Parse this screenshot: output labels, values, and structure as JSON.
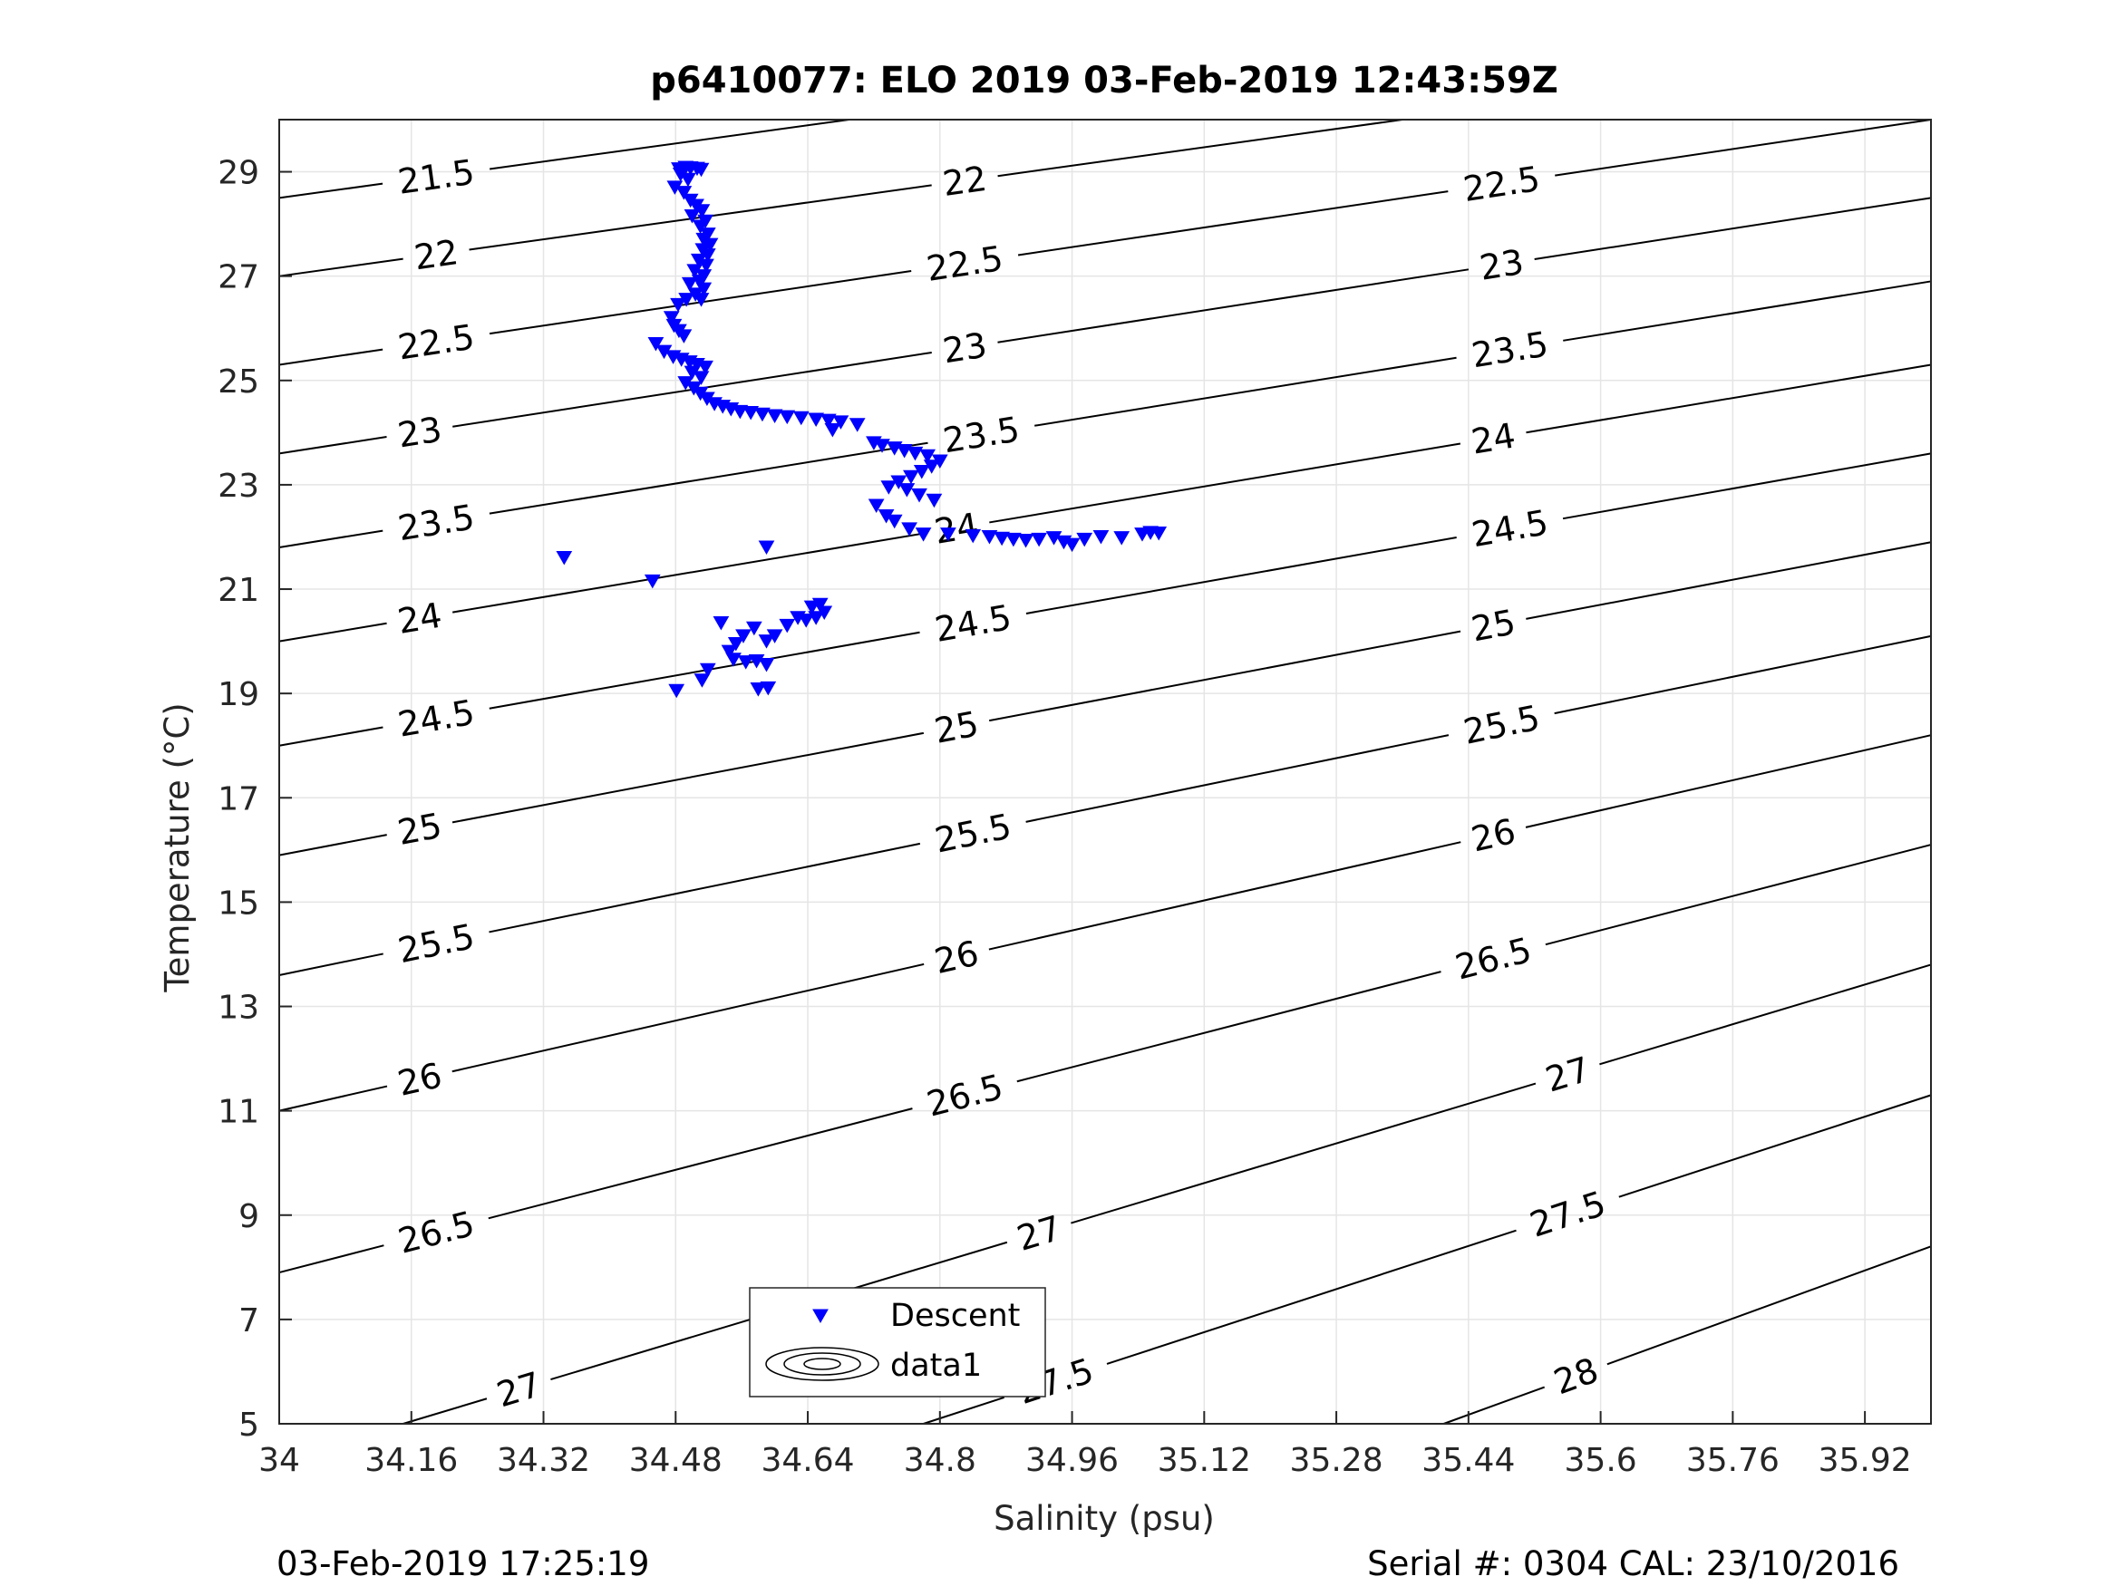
{
  "chart_data": {
    "type": "scatter",
    "title": "p6410077: ELO 2019 03-Feb-2019 12:43:59Z",
    "xlabel": "Salinity (psu)",
    "ylabel": "Temperature (°C)",
    "xlim": [
      34,
      36.0
    ],
    "ylim": [
      5,
      30
    ],
    "x_ticks": [
      34,
      34.16,
      34.32,
      34.48,
      34.64,
      34.8,
      34.96,
      35.12,
      35.28,
      35.44,
      35.6,
      35.76,
      35.92
    ],
    "x_tick_labels": [
      "34",
      "34.16",
      "34.32",
      "34.48",
      "34.64",
      "34.8",
      "34.96",
      "35.12",
      "35.28",
      "35.44",
      "35.6",
      "35.76",
      "35.92"
    ],
    "y_ticks": [
      5,
      7,
      9,
      11,
      13,
      15,
      17,
      19,
      21,
      23,
      25,
      27,
      29
    ],
    "y_tick_labels": [
      "5",
      "7",
      "9",
      "11",
      "13",
      "15",
      "17",
      "19",
      "21",
      "23",
      "25",
      "27",
      "29"
    ],
    "grid": true,
    "legend": {
      "position": "bottom-center",
      "entries": [
        "Descent",
        "data1"
      ]
    },
    "footer_left": "03-Feb-2019 17:25:19",
    "footer_right": "Serial #: 0304  CAL: 23/10/2016",
    "colors": {
      "descent": "#0000ff",
      "contour": "#000000",
      "grid": "#e5e5e5"
    },
    "density_contours": [
      {
        "level": "21.5",
        "points": [
          [
            34.0,
            28.5
          ],
          [
            34.69,
            30.0
          ]
        ],
        "labels": [
          [
            34.19,
            29.0
          ]
        ]
      },
      {
        "level": "22",
        "points": [
          [
            34.0,
            27.0
          ],
          [
            35.36,
            30.0
          ]
        ],
        "labels": [
          [
            34.19,
            27.7
          ],
          [
            34.83,
            29.0
          ]
        ]
      },
      {
        "level": "22.5",
        "points": [
          [
            34.0,
            25.3
          ],
          [
            36.0,
            30.0
          ]
        ],
        "labels": [
          [
            34.19,
            26.0
          ],
          [
            34.83,
            27.4
          ],
          [
            35.48,
            29.0
          ]
        ]
      },
      {
        "level": "23",
        "points": [
          [
            34.0,
            23.6
          ],
          [
            36.0,
            28.5
          ]
        ],
        "labels": [
          [
            34.17,
            24.1
          ],
          [
            34.83,
            25.7
          ],
          [
            35.48,
            27.2
          ]
        ]
      },
      {
        "level": "23.5",
        "points": [
          [
            34.0,
            21.8
          ],
          [
            36.0,
            26.9
          ]
        ],
        "labels": [
          [
            34.19,
            22.4
          ],
          [
            34.85,
            24.0
          ],
          [
            35.49,
            25.6
          ]
        ]
      },
      {
        "level": "24",
        "points": [
          [
            34.0,
            20.0
          ],
          [
            36.0,
            25.3
          ]
        ],
        "labels": [
          [
            34.17,
            20.7
          ],
          [
            34.82,
            22.3
          ],
          [
            35.47,
            23.9
          ]
        ]
      },
      {
        "level": "24.5",
        "points": [
          [
            34.0,
            18.0
          ],
          [
            36.0,
            23.6
          ]
        ],
        "labels": [
          [
            34.19,
            18.9
          ],
          [
            34.84,
            20.6
          ],
          [
            35.49,
            22.3
          ]
        ]
      },
      {
        "level": "25",
        "points": [
          [
            34.0,
            15.9
          ],
          [
            36.0,
            21.9
          ]
        ],
        "labels": [
          [
            34.17,
            16.9
          ],
          [
            34.82,
            18.8
          ],
          [
            35.47,
            20.5
          ]
        ]
      },
      {
        "level": "25.5",
        "points": [
          [
            34.0,
            13.6
          ],
          [
            36.0,
            20.1
          ]
        ],
        "labels": [
          [
            34.19,
            14.6
          ],
          [
            34.84,
            16.6
          ],
          [
            35.48,
            18.6
          ]
        ]
      },
      {
        "level": "26",
        "points": [
          [
            34.0,
            11.0
          ],
          [
            36.0,
            18.2
          ]
        ],
        "labels": [
          [
            34.17,
            12.3
          ],
          [
            34.82,
            14.4
          ],
          [
            35.47,
            16.6
          ]
        ]
      },
      {
        "level": "26.5",
        "points": [
          [
            34.0,
            7.9
          ],
          [
            36.0,
            16.1
          ]
        ],
        "labels": [
          [
            34.19,
            9.5
          ],
          [
            34.83,
            12.0
          ],
          [
            35.47,
            14.3
          ]
        ]
      },
      {
        "level": "27",
        "points": [
          [
            34.15,
            5.0
          ],
          [
            36.0,
            13.8
          ]
        ],
        "labels": [
          [
            34.29,
            6.5
          ],
          [
            34.92,
            9.4
          ],
          [
            35.56,
            12.0
          ]
        ]
      },
      {
        "level": "27.5",
        "points": [
          [
            34.78,
            5.0
          ],
          [
            36.0,
            11.3
          ]
        ],
        "labels": [
          [
            34.94,
            6.5
          ],
          [
            35.56,
            9.4
          ]
        ]
      },
      {
        "level": "28",
        "points": [
          [
            35.41,
            5.0
          ],
          [
            36.0,
            8.4
          ]
        ],
        "labels": [
          [
            35.57,
            6.5
          ]
        ]
      }
    ],
    "series": [
      {
        "name": "Descent",
        "points": [
          [
            34.484,
            29.05
          ],
          [
            34.492,
            29.08
          ],
          [
            34.498,
            29.07
          ],
          [
            34.506,
            29.06
          ],
          [
            34.511,
            29.04
          ],
          [
            34.486,
            28.95
          ],
          [
            34.495,
            28.85
          ],
          [
            34.479,
            28.7
          ],
          [
            34.49,
            28.6
          ],
          [
            34.498,
            28.45
          ],
          [
            34.505,
            28.35
          ],
          [
            34.512,
            28.25
          ],
          [
            34.5,
            28.15
          ],
          [
            34.516,
            28.05
          ],
          [
            34.51,
            27.95
          ],
          [
            34.519,
            27.8
          ],
          [
            34.514,
            27.7
          ],
          [
            34.522,
            27.6
          ],
          [
            34.513,
            27.5
          ],
          [
            34.519,
            27.4
          ],
          [
            34.508,
            27.3
          ],
          [
            34.517,
            27.2
          ],
          [
            34.503,
            27.1
          ],
          [
            34.514,
            27.0
          ],
          [
            34.509,
            26.9
          ],
          [
            34.497,
            26.85
          ],
          [
            34.514,
            26.75
          ],
          [
            34.504,
            26.65
          ],
          [
            34.493,
            26.55
          ],
          [
            34.511,
            26.55
          ],
          [
            34.483,
            26.45
          ],
          [
            34.475,
            26.2
          ],
          [
            34.478,
            26.05
          ],
          [
            34.484,
            25.95
          ],
          [
            34.49,
            25.85
          ],
          [
            34.456,
            25.7
          ],
          [
            34.466,
            25.55
          ],
          [
            34.477,
            25.45
          ],
          [
            34.487,
            25.4
          ],
          [
            34.497,
            25.35
          ],
          [
            34.506,
            25.3
          ],
          [
            34.516,
            25.25
          ],
          [
            34.5,
            25.15
          ],
          [
            34.511,
            25.05
          ],
          [
            34.492,
            24.95
          ],
          [
            34.502,
            24.85
          ],
          [
            34.51,
            24.75
          ],
          [
            34.518,
            24.65
          ],
          [
            34.527,
            24.55
          ],
          [
            34.537,
            24.5
          ],
          [
            34.547,
            24.45
          ],
          [
            34.558,
            24.4
          ],
          [
            34.571,
            24.38
          ],
          [
            34.585,
            24.35
          ],
          [
            34.6,
            24.32
          ],
          [
            34.615,
            24.3
          ],
          [
            34.632,
            24.28
          ],
          [
            34.65,
            24.25
          ],
          [
            34.665,
            24.23
          ],
          [
            34.68,
            24.2
          ],
          [
            34.67,
            24.05
          ],
          [
            34.7,
            24.15
          ],
          [
            34.72,
            23.8
          ],
          [
            34.73,
            23.75
          ],
          [
            34.745,
            23.7
          ],
          [
            34.757,
            23.65
          ],
          [
            34.77,
            23.6
          ],
          [
            34.785,
            23.55
          ],
          [
            34.8,
            23.45
          ],
          [
            34.79,
            23.35
          ],
          [
            34.778,
            23.25
          ],
          [
            34.765,
            23.15
          ],
          [
            34.75,
            23.05
          ],
          [
            34.738,
            22.95
          ],
          [
            34.76,
            22.9
          ],
          [
            34.775,
            22.8
          ],
          [
            34.793,
            22.7
          ],
          [
            34.723,
            22.6
          ],
          [
            34.735,
            22.4
          ],
          [
            34.745,
            22.3
          ],
          [
            34.763,
            22.15
          ],
          [
            34.78,
            22.05
          ],
          [
            34.81,
            22.05
          ],
          [
            34.84,
            22.02
          ],
          [
            34.86,
            22.0
          ],
          [
            34.875,
            21.97
          ],
          [
            34.889,
            21.95
          ],
          [
            34.904,
            21.93
          ],
          [
            34.92,
            21.95
          ],
          [
            34.938,
            21.98
          ],
          [
            34.95,
            21.9
          ],
          [
            34.96,
            21.85
          ],
          [
            34.975,
            21.95
          ],
          [
            34.995,
            22.0
          ],
          [
            35.02,
            21.98
          ],
          [
            35.045,
            22.05
          ],
          [
            35.055,
            22.08
          ],
          [
            35.065,
            22.07
          ],
          [
            34.59,
            21.8
          ],
          [
            34.345,
            21.6
          ],
          [
            34.452,
            21.15
          ],
          [
            34.655,
            20.7
          ],
          [
            34.645,
            20.65
          ],
          [
            34.66,
            20.55
          ],
          [
            34.65,
            20.45
          ],
          [
            34.638,
            20.4
          ],
          [
            34.628,
            20.45
          ],
          [
            34.615,
            20.3
          ],
          [
            34.6,
            20.1
          ],
          [
            34.59,
            20.0
          ],
          [
            34.575,
            20.25
          ],
          [
            34.562,
            20.1
          ],
          [
            34.553,
            19.95
          ],
          [
            34.545,
            19.8
          ],
          [
            34.55,
            19.65
          ],
          [
            34.565,
            19.6
          ],
          [
            34.578,
            19.62
          ],
          [
            34.59,
            19.55
          ],
          [
            34.535,
            20.35
          ],
          [
            34.519,
            19.45
          ],
          [
            34.512,
            19.25
          ],
          [
            34.481,
            19.05
          ],
          [
            34.58,
            19.08
          ],
          [
            34.592,
            19.1
          ]
        ]
      }
    ]
  }
}
